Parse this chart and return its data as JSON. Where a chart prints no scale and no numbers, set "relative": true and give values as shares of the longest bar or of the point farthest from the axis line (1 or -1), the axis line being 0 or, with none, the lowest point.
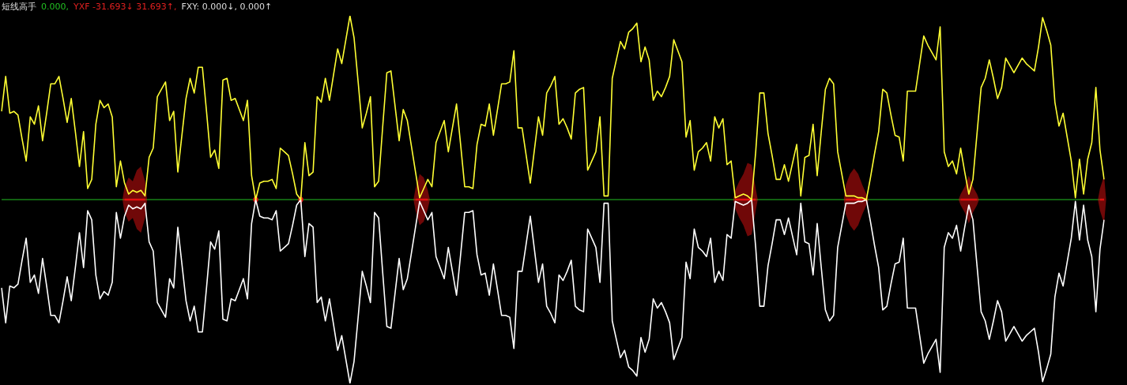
{
  "chart_data": {
    "type": "line",
    "title": "短线高手",
    "relative": true,
    "tick_labels": false,
    "legend": false,
    "marker": "none",
    "line_style": "solid",
    "annotations": [
      "0.000,",
      "YXF -31.693↓ 31.693↑,",
      "FXY: 0.000↓, 0.000↑"
    ],
    "ref_lines": [
      {
        "axis": "y",
        "value": 0,
        "color": "#22c022"
      }
    ],
    "categories": [
      null,
      null,
      null,
      null,
      null,
      null,
      null,
      null,
      null,
      null,
      null,
      null,
      null,
      null,
      null,
      null,
      null,
      null,
      null,
      null,
      null,
      null,
      null,
      null,
      null,
      null,
      null,
      null,
      null,
      null,
      null,
      null,
      null,
      null,
      null,
      null,
      null,
      null,
      null,
      null,
      null,
      null,
      null,
      null,
      null,
      null,
      null,
      null,
      null,
      null,
      null,
      null,
      null,
      null,
      null,
      null,
      null,
      null,
      null,
      null,
      null,
      null,
      null,
      null,
      null,
      null,
      null,
      null,
      null,
      null,
      null,
      null,
      null,
      null,
      null,
      null,
      null,
      null,
      null,
      null,
      null,
      null,
      null,
      null,
      null,
      null,
      null,
      null,
      null,
      null,
      null,
      null,
      null,
      null,
      null,
      null,
      null,
      null,
      null,
      null,
      null,
      null,
      null,
      null,
      null,
      null,
      null,
      null,
      null,
      null,
      null,
      null,
      null,
      null,
      null,
      null,
      null,
      null,
      null,
      null,
      null,
      null,
      null,
      null,
      null,
      null,
      null,
      null,
      null,
      null,
      null,
      null,
      null,
      null,
      null,
      null,
      null,
      null,
      null,
      null,
      null,
      null,
      null,
      null,
      null,
      null,
      null,
      null,
      null,
      null,
      null,
      null,
      null,
      null,
      null,
      null,
      null,
      null,
      null,
      null,
      null,
      null,
      null,
      null,
      null,
      null,
      null,
      null,
      null,
      null,
      null,
      null,
      null,
      null,
      null,
      null,
      null,
      null,
      null,
      null,
      null,
      null,
      null,
      null,
      null,
      null,
      null,
      null,
      null,
      null,
      null,
      null,
      null,
      null,
      null,
      null,
      null,
      null,
      null,
      null,
      null,
      null,
      null,
      null,
      null,
      null,
      null,
      null,
      null,
      null,
      null,
      null,
      null,
      null,
      null,
      null,
      null,
      null,
      null,
      null,
      null,
      null,
      null,
      null,
      null,
      null,
      null,
      null,
      null,
      null,
      null,
      null,
      null,
      null,
      null,
      null,
      null,
      null,
      null,
      null,
      null,
      null,
      null,
      null,
      null,
      null,
      null,
      null,
      null,
      null,
      null,
      null,
      null,
      null,
      null,
      null,
      null,
      null,
      null,
      null,
      null,
      null,
      null,
      null,
      null,
      null,
      null,
      null,
      null,
      null
    ],
    "series": [
      {
        "color": "#ffff33",
        "values": [
          0.48,
          0.67,
          0.47,
          0.48,
          0.46,
          0.33,
          0.21,
          0.45,
          0.41,
          0.51,
          0.32,
          0.47,
          0.63,
          0.63,
          0.67,
          0.55,
          0.42,
          0.55,
          0.37,
          0.18,
          0.37,
          0.06,
          0.11,
          0.41,
          0.54,
          0.5,
          0.52,
          0.45,
          0.07,
          0.21,
          0.09,
          0.03,
          0.05,
          0.04,
          0.05,
          0.02,
          0.23,
          0.28,
          0.56,
          0.6,
          0.64,
          0.43,
          0.48,
          0.15,
          0.35,
          0.55,
          0.66,
          0.58,
          0.72,
          0.72,
          0.48,
          0.23,
          0.27,
          0.17,
          0.65,
          0.66,
          0.54,
          0.55,
          0.49,
          0.43,
          0.54,
          0.13,
          0.0,
          0.09,
          0.1,
          0.1,
          0.11,
          0.06,
          0.28,
          0.26,
          0.24,
          0.14,
          0.03,
          0.0,
          0.31,
          0.13,
          0.15,
          0.56,
          0.53,
          0.66,
          0.54,
          0.68,
          0.82,
          0.74,
          0.87,
          1.0,
          0.88,
          0.64,
          0.39,
          0.47,
          0.56,
          0.07,
          0.1,
          0.4,
          0.69,
          0.7,
          0.51,
          0.32,
          0.49,
          0.43,
          0.29,
          0.15,
          0.01,
          0.06,
          0.11,
          0.07,
          0.31,
          0.37,
          0.43,
          0.26,
          0.39,
          0.52,
          0.3,
          0.07,
          0.07,
          0.06,
          0.3,
          0.41,
          0.4,
          0.52,
          0.35,
          0.49,
          0.63,
          0.63,
          0.64,
          0.81,
          0.39,
          0.39,
          0.24,
          0.09,
          0.27,
          0.45,
          0.35,
          0.58,
          0.62,
          0.67,
          0.41,
          0.44,
          0.39,
          0.33,
          0.58,
          0.6,
          0.61,
          0.16,
          0.21,
          0.26,
          0.45,
          0.02,
          0.02,
          0.66,
          0.76,
          0.86,
          0.82,
          0.91,
          0.93,
          0.96,
          0.75,
          0.83,
          0.76,
          0.54,
          0.59,
          0.56,
          0.61,
          0.67,
          0.87,
          0.81,
          0.75,
          0.34,
          0.43,
          0.16,
          0.26,
          0.28,
          0.31,
          0.21,
          0.45,
          0.39,
          0.44,
          0.19,
          0.21,
          0.01,
          0.02,
          0.03,
          0.02,
          0.0,
          0.26,
          0.58,
          0.58,
          0.36,
          0.24,
          0.11,
          0.11,
          0.19,
          0.1,
          0.2,
          0.3,
          0.02,
          0.23,
          0.24,
          0.41,
          0.13,
          0.37,
          0.6,
          0.66,
          0.63,
          0.26,
          0.14,
          0.02,
          0.02,
          0.02,
          0.01,
          0.01,
          0.0,
          0.12,
          0.25,
          0.37,
          0.6,
          0.58,
          0.46,
          0.35,
          0.34,
          0.21,
          0.59,
          0.59,
          0.59,
          0.74,
          0.89,
          0.84,
          0.8,
          0.76,
          0.94,
          0.26,
          0.18,
          0.21,
          0.14,
          0.28,
          0.15,
          0.03,
          0.11,
          0.36,
          0.61,
          0.66,
          0.76,
          0.66,
          0.55,
          0.61,
          0.77,
          0.73,
          0.69,
          0.73,
          0.77,
          0.74,
          0.72,
          0.7,
          0.83,
          0.99,
          0.92,
          0.84,
          0.53,
          0.4,
          0.47,
          0.34,
          0.21,
          0.01,
          0.22,
          0.03,
          0.22,
          0.31,
          0.61,
          0.27,
          0.11
        ]
      },
      {
        "color": "#ffffff",
        "values": [
          -0.48,
          -0.67,
          -0.47,
          -0.48,
          -0.46,
          -0.33,
          -0.21,
          -0.45,
          -0.41,
          -0.51,
          -0.32,
          -0.47,
          -0.63,
          -0.63,
          -0.67,
          -0.55,
          -0.42,
          -0.55,
          -0.37,
          -0.18,
          -0.37,
          -0.06,
          -0.11,
          -0.41,
          -0.54,
          -0.5,
          -0.52,
          -0.45,
          -0.07,
          -0.21,
          -0.09,
          -0.03,
          -0.05,
          -0.04,
          -0.05,
          -0.02,
          -0.23,
          -0.28,
          -0.56,
          -0.6,
          -0.64,
          -0.43,
          -0.48,
          -0.15,
          -0.35,
          -0.55,
          -0.66,
          -0.58,
          -0.72,
          -0.72,
          -0.48,
          -0.23,
          -0.27,
          -0.17,
          -0.65,
          -0.66,
          -0.54,
          -0.55,
          -0.49,
          -0.43,
          -0.54,
          -0.13,
          0.0,
          -0.09,
          -0.1,
          -0.1,
          -0.11,
          -0.06,
          -0.28,
          -0.26,
          -0.24,
          -0.14,
          -0.03,
          0.0,
          -0.31,
          -0.13,
          -0.15,
          -0.56,
          -0.53,
          -0.66,
          -0.54,
          -0.68,
          -0.82,
          -0.74,
          -0.87,
          -1.0,
          -0.88,
          -0.64,
          -0.39,
          -0.47,
          -0.56,
          -0.07,
          -0.1,
          -0.4,
          -0.69,
          -0.7,
          -0.51,
          -0.32,
          -0.49,
          -0.43,
          -0.29,
          -0.15,
          -0.01,
          -0.06,
          -0.11,
          -0.07,
          -0.31,
          -0.37,
          -0.43,
          -0.26,
          -0.39,
          -0.52,
          -0.3,
          -0.07,
          -0.07,
          -0.06,
          -0.3,
          -0.41,
          -0.4,
          -0.52,
          -0.35,
          -0.49,
          -0.63,
          -0.63,
          -0.64,
          -0.81,
          -0.39,
          -0.39,
          -0.24,
          -0.09,
          -0.27,
          -0.45,
          -0.35,
          -0.58,
          -0.62,
          -0.67,
          -0.41,
          -0.44,
          -0.39,
          -0.33,
          -0.58,
          -0.6,
          -0.61,
          -0.16,
          -0.21,
          -0.26,
          -0.45,
          -0.02,
          -0.02,
          -0.66,
          -0.76,
          -0.86,
          -0.82,
          -0.91,
          -0.93,
          -0.96,
          -0.75,
          -0.83,
          -0.76,
          -0.54,
          -0.59,
          -0.56,
          -0.61,
          -0.67,
          -0.87,
          -0.81,
          -0.75,
          -0.34,
          -0.43,
          -0.16,
          -0.26,
          -0.28,
          -0.31,
          -0.21,
          -0.45,
          -0.39,
          -0.44,
          -0.19,
          -0.21,
          -0.01,
          -0.02,
          -0.03,
          -0.02,
          0.0,
          -0.26,
          -0.58,
          -0.58,
          -0.36,
          -0.24,
          -0.11,
          -0.11,
          -0.19,
          -0.1,
          -0.2,
          -0.3,
          -0.02,
          -0.23,
          -0.24,
          -0.41,
          -0.13,
          -0.37,
          -0.6,
          -0.66,
          -0.63,
          -0.26,
          -0.14,
          -0.02,
          -0.02,
          -0.02,
          -0.01,
          -0.01,
          0.0,
          -0.12,
          -0.25,
          -0.37,
          -0.6,
          -0.58,
          -0.46,
          -0.35,
          -0.34,
          -0.21,
          -0.59,
          -0.59,
          -0.59,
          -0.74,
          -0.89,
          -0.84,
          -0.8,
          -0.76,
          -0.94,
          -0.26,
          -0.18,
          -0.21,
          -0.14,
          -0.28,
          -0.15,
          -0.03,
          -0.11,
          -0.36,
          -0.61,
          -0.66,
          -0.76,
          -0.66,
          -0.55,
          -0.61,
          -0.77,
          -0.73,
          -0.69,
          -0.73,
          -0.77,
          -0.74,
          -0.72,
          -0.7,
          -0.83,
          -0.99,
          -0.92,
          -0.84,
          -0.53,
          -0.4,
          -0.47,
          -0.34,
          -0.21,
          -0.01,
          -0.22,
          -0.03,
          -0.22,
          -0.31,
          -0.61,
          -0.27,
          -0.11
        ]
      },
      {
        "color": "#e01010",
        "values": [
          null,
          null,
          null,
          null,
          null,
          null,
          null,
          null,
          null,
          null,
          null,
          null,
          null,
          null,
          null,
          null,
          null,
          null,
          null,
          null,
          null,
          null,
          null,
          null,
          null,
          null,
          null,
          null,
          null,
          null,
          0,
          0,
          0,
          0,
          0,
          0,
          null,
          null,
          null,
          null,
          null,
          null,
          null,
          null,
          null,
          null,
          null,
          null,
          null,
          null,
          null,
          null,
          null,
          null,
          null,
          null,
          null,
          null,
          null,
          null,
          null,
          null,
          0,
          null,
          null,
          null,
          null,
          null,
          null,
          null,
          null,
          null,
          null,
          0,
          null,
          null,
          null,
          null,
          null,
          null,
          null,
          null,
          null,
          null,
          null,
          null,
          null,
          null,
          null,
          null,
          null,
          null,
          null,
          null,
          null,
          null,
          null,
          null,
          null,
          null,
          null,
          0,
          0,
          0,
          0,
          null,
          null,
          null,
          null,
          null,
          null,
          null,
          null,
          null,
          null,
          null,
          null,
          null,
          null,
          null,
          null,
          null,
          null,
          null,
          null,
          null,
          null,
          null,
          null,
          null,
          null,
          null,
          null,
          null,
          null,
          null,
          null,
          null,
          null,
          null,
          null,
          null,
          null,
          null,
          null,
          null,
          null,
          null,
          null,
          null,
          null,
          null,
          null,
          null,
          null,
          null,
          null,
          null,
          null,
          null,
          null,
          null,
          null,
          null,
          null,
          null,
          null,
          null,
          null,
          null,
          null,
          null,
          null,
          null,
          null,
          null,
          null,
          null,
          null,
          0,
          0,
          0,
          0,
          0,
          0,
          null,
          null,
          null,
          null,
          null,
          null,
          null,
          null,
          null,
          null,
          null,
          null,
          null,
          null,
          null,
          null,
          null,
          null,
          null,
          null,
          null,
          0,
          0,
          0,
          0,
          0,
          0,
          null,
          null,
          null,
          null,
          null,
          null,
          null,
          null,
          null,
          null,
          null,
          null,
          null,
          null,
          null,
          null,
          null,
          null,
          null,
          null,
          null,
          null,
          0,
          0,
          0,
          0,
          0,
          null,
          null,
          null,
          null,
          null,
          null,
          null,
          null,
          null,
          null,
          null,
          null,
          null,
          null,
          null,
          null,
          null,
          null,
          null,
          null,
          null,
          null,
          null,
          null,
          null,
          null,
          null,
          null,
          null,
          0,
          0
        ],
        "upper": [
          null,
          null,
          null,
          null,
          null,
          null,
          null,
          null,
          null,
          null,
          null,
          null,
          null,
          null,
          null,
          null,
          null,
          null,
          null,
          null,
          null,
          null,
          null,
          null,
          null,
          null,
          null,
          null,
          null,
          null,
          0.07,
          0.12,
          0.1,
          0.16,
          0.18,
          0.1,
          null,
          null,
          null,
          null,
          null,
          null,
          null,
          null,
          null,
          null,
          null,
          null,
          null,
          null,
          null,
          null,
          null,
          null,
          null,
          null,
          null,
          null,
          null,
          null,
          null,
          null,
          0.03,
          null,
          null,
          null,
          null,
          null,
          null,
          null,
          null,
          null,
          null,
          0.04,
          null,
          null,
          null,
          null,
          null,
          null,
          null,
          null,
          null,
          null,
          null,
          null,
          null,
          null,
          null,
          null,
          null,
          null,
          null,
          null,
          null,
          null,
          null,
          null,
          null,
          null,
          null,
          0.06,
          0.14,
          0.12,
          0.05,
          null,
          null,
          null,
          null,
          null,
          null,
          null,
          null,
          null,
          null,
          null,
          null,
          null,
          null,
          null,
          null,
          null,
          null,
          null,
          null,
          null,
          null,
          null,
          null,
          null,
          null,
          null,
          null,
          null,
          null,
          null,
          null,
          null,
          null,
          null,
          null,
          null,
          null,
          null,
          null,
          null,
          null,
          null,
          null,
          null,
          null,
          null,
          null,
          null,
          null,
          null,
          null,
          null,
          null,
          null,
          null,
          null,
          null,
          null,
          null,
          null,
          null,
          null,
          null,
          null,
          null,
          null,
          null,
          null,
          null,
          null,
          null,
          null,
          null,
          0.05,
          0.1,
          0.14,
          0.2,
          0.19,
          0.06,
          null,
          null,
          null,
          null,
          null,
          null,
          null,
          null,
          null,
          null,
          null,
          null,
          null,
          null,
          null,
          null,
          null,
          null,
          null,
          null,
          null,
          0.08,
          0.14,
          0.17,
          0.14,
          0.08,
          0.03,
          null,
          null,
          null,
          null,
          null,
          null,
          null,
          null,
          null,
          null,
          null,
          null,
          null,
          null,
          null,
          null,
          null,
          null,
          null,
          null,
          null,
          null,
          0.03,
          0.07,
          0.13,
          0.07,
          0.03,
          null,
          null,
          null,
          null,
          null,
          null,
          null,
          null,
          null,
          null,
          null,
          null,
          null,
          null,
          null,
          null,
          null,
          null,
          null,
          null,
          null,
          null,
          null,
          null,
          null,
          null,
          null,
          null,
          null,
          0.06,
          0.13
        ],
        "lower": [
          null,
          null,
          null,
          null,
          null,
          null,
          null,
          null,
          null,
          null,
          null,
          null,
          null,
          null,
          null,
          null,
          null,
          null,
          null,
          null,
          null,
          null,
          null,
          null,
          null,
          null,
          null,
          null,
          null,
          null,
          -0.07,
          -0.12,
          -0.1,
          -0.16,
          -0.18,
          -0.1,
          null,
          null,
          null,
          null,
          null,
          null,
          null,
          null,
          null,
          null,
          null,
          null,
          null,
          null,
          null,
          null,
          null,
          null,
          null,
          null,
          null,
          null,
          null,
          null,
          null,
          null,
          -0.03,
          null,
          null,
          null,
          null,
          null,
          null,
          null,
          null,
          null,
          null,
          -0.04,
          null,
          null,
          null,
          null,
          null,
          null,
          null,
          null,
          null,
          null,
          null,
          null,
          null,
          null,
          null,
          null,
          null,
          null,
          null,
          null,
          null,
          null,
          null,
          null,
          null,
          null,
          null,
          -0.06,
          -0.14,
          -0.12,
          -0.05,
          null,
          null,
          null,
          null,
          null,
          null,
          null,
          null,
          null,
          null,
          null,
          null,
          null,
          null,
          null,
          null,
          null,
          null,
          null,
          null,
          null,
          null,
          null,
          null,
          null,
          null,
          null,
          null,
          null,
          null,
          null,
          null,
          null,
          null,
          null,
          null,
          null,
          null,
          null,
          null,
          null,
          null,
          null,
          null,
          null,
          null,
          null,
          null,
          null,
          null,
          null,
          null,
          null,
          null,
          null,
          null,
          null,
          null,
          null,
          null,
          null,
          null,
          null,
          null,
          null,
          null,
          null,
          null,
          null,
          null,
          null,
          null,
          null,
          null,
          -0.05,
          -0.1,
          -0.14,
          -0.2,
          -0.19,
          -0.06,
          null,
          null,
          null,
          null,
          null,
          null,
          null,
          null,
          null,
          null,
          null,
          null,
          null,
          null,
          null,
          null,
          null,
          null,
          null,
          null,
          null,
          -0.08,
          -0.14,
          -0.17,
          -0.14,
          -0.08,
          -0.03,
          null,
          null,
          null,
          null,
          null,
          null,
          null,
          null,
          null,
          null,
          null,
          null,
          null,
          null,
          null,
          null,
          null,
          null,
          null,
          null,
          null,
          null,
          -0.03,
          -0.07,
          -0.13,
          -0.07,
          -0.03,
          null,
          null,
          null,
          null,
          null,
          null,
          null,
          null,
          null,
          null,
          null,
          null,
          null,
          null,
          null,
          null,
          null,
          null,
          null,
          null,
          null,
          null,
          null,
          null,
          null,
          null,
          null,
          null,
          null,
          -0.06,
          -0.13
        ]
      }
    ]
  }
}
